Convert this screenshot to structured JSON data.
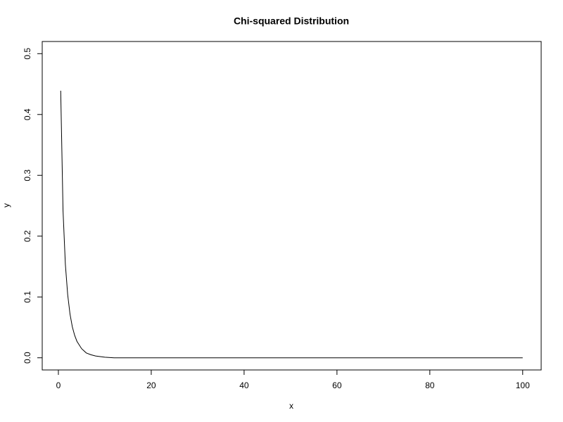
{
  "chart_data": {
    "type": "line",
    "title": "Chi-squared Distribution",
    "x_label": "x",
    "y_label": "y",
    "x": [
      0.5,
      1,
      1.5,
      2,
      2.5,
      3,
      3.5,
      4,
      5,
      6,
      7,
      8,
      10,
      12,
      15,
      20,
      30,
      40,
      50,
      60,
      70,
      80,
      90,
      100
    ],
    "series": [
      {
        "color": "#000000",
        "values": [
          0.439,
          0.242,
          0.154,
          0.104,
          0.072,
          0.051,
          0.037,
          0.027,
          0.015,
          0.008,
          0.005,
          0.003,
          0.001,
          0.0,
          0.0,
          0.0,
          0.0,
          0.0,
          0.0,
          0.0,
          0.0,
          0.0,
          0.0,
          0.0
        ]
      }
    ],
    "xlim": [
      -3.48,
      103.98
    ],
    "ylim": [
      -0.02,
      0.52
    ],
    "xticks": [
      0,
      20,
      40,
      60,
      80,
      100
    ],
    "yticks": [
      {
        "value": 0,
        "label": "0.0"
      },
      0.1,
      0.2,
      0.3,
      0.4,
      0.5
    ],
    "grid": false
  }
}
